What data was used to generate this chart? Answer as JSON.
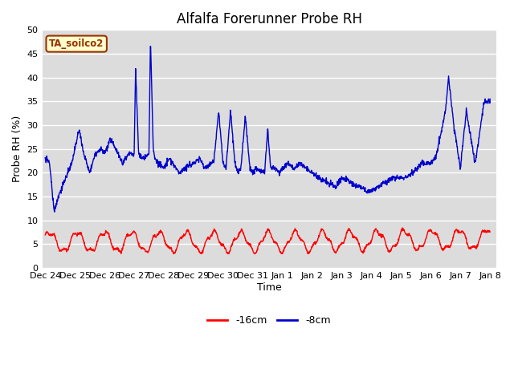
{
  "title": "Alfalfa Forerunner Probe RH",
  "ylabel": "Probe RH (%)",
  "xlabel": "Time",
  "ylim": [
    0,
    50
  ],
  "bg_color": "#dcdcdc",
  "fig_bg_color": "#ffffff",
  "grid_color": "#ffffff",
  "annotation_text": "TA_soilco2",
  "annotation_bg": "#ffffcc",
  "annotation_border": "#993300",
  "annotation_text_color": "#993300",
  "legend_labels": [
    "-16cm",
    "-8cm"
  ],
  "line_colors": [
    "#ff0000",
    "#0000cc"
  ],
  "xtick_labels": [
    "Dec 24",
    "Dec 25",
    "Dec 26",
    "Dec 27",
    "Dec 28",
    "Dec 29",
    "Dec 30",
    "Dec 31",
    "Jan 1",
    "Jan 2",
    "Jan 3",
    "Jan 4",
    "Jan 5",
    "Jan 6",
    "Jan 7",
    "Jan 8"
  ],
  "title_fontsize": 12,
  "axis_fontsize": 9,
  "tick_fontsize": 8
}
